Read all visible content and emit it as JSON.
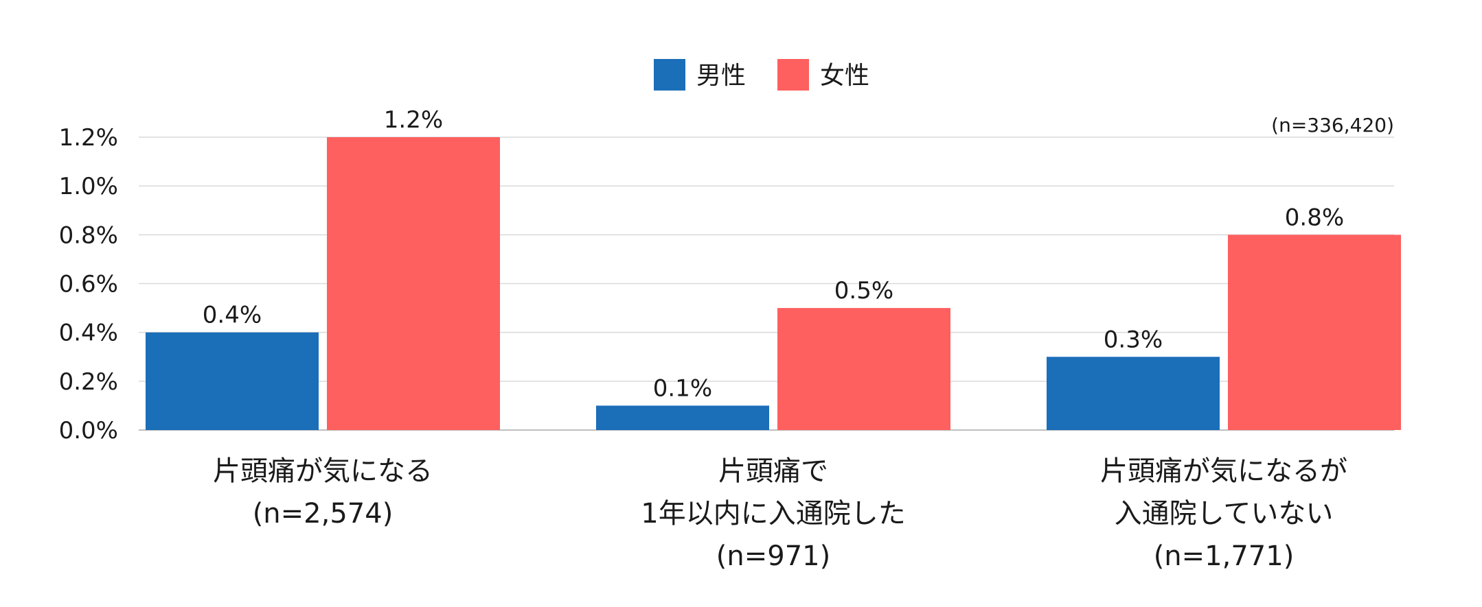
{
  "chart_data": {
    "type": "bar",
    "note": "(n=336,420)",
    "categories": [
      [
        "片頭痛が気になる",
        "(n=2,574)"
      ],
      [
        "片頭痛で",
        "1年以内に入通院した",
        "(n=971)"
      ],
      [
        "片頭痛が気になるが",
        "入通院していない",
        "(n=1,771)"
      ]
    ],
    "series": [
      {
        "name": "男性",
        "color": "#1b6eb8",
        "values": [
          0.4,
          0.1,
          0.3
        ],
        "labels": [
          "0.4%",
          "0.1%",
          "0.3%"
        ]
      },
      {
        "name": "女性",
        "color": "#fe5f5f",
        "values": [
          1.2,
          0.5,
          0.8
        ],
        "labels": [
          "1.2%",
          "0.5%",
          "0.8%"
        ]
      }
    ],
    "ylim": [
      0,
      1.2
    ],
    "yticks": [
      {
        "value": 0.0,
        "label": "0.0%"
      },
      {
        "value": 0.2,
        "label": "0.2%"
      },
      {
        "value": 0.4,
        "label": "0.4%"
      },
      {
        "value": 0.6,
        "label": "0.6%"
      },
      {
        "value": 0.8,
        "label": "0.8%"
      },
      {
        "value": 1.0,
        "label": "1.0%"
      },
      {
        "value": 1.2,
        "label": "1.2%"
      }
    ],
    "grid": true,
    "legend_position": "top-center"
  }
}
